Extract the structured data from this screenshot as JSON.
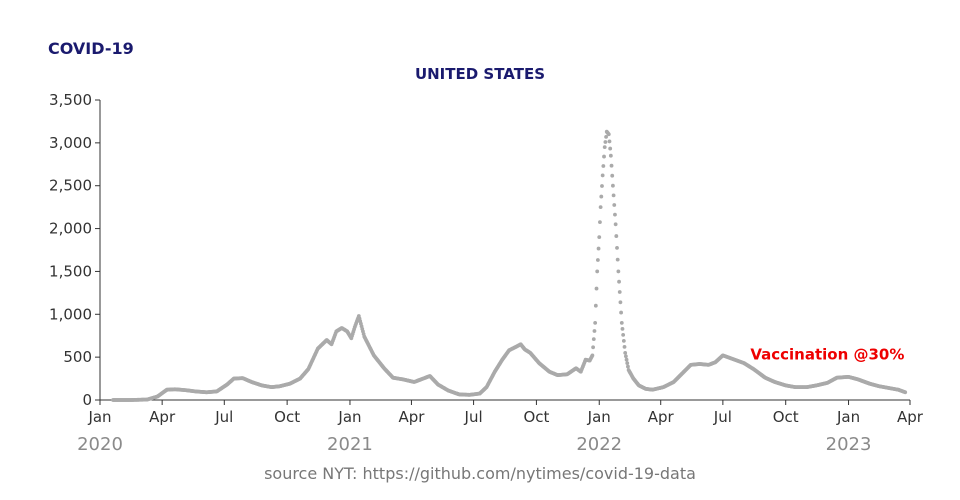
{
  "chart_data": {
    "type": "scatter",
    "title": "COVID-19",
    "subtitle": "UNITED STATES",
    "source": "source NYT: https://github.com/nytimes/covid-19-data",
    "ylim": [
      0,
      3500
    ],
    "y_ticks": [
      0,
      500,
      1000,
      1500,
      2000,
      2500,
      3000,
      3500
    ],
    "y_tick_labels": [
      "0",
      "500",
      "1,000",
      "1,500",
      "2,000",
      "2,500",
      "3,000",
      "3,500"
    ],
    "x_range": [
      "2020-01-01",
      "2023-04-01"
    ],
    "x_ticks": [
      "2020-01-01",
      "2020-04-01",
      "2020-07-01",
      "2020-10-01",
      "2021-01-01",
      "2021-04-01",
      "2021-07-01",
      "2021-10-01",
      "2022-01-01",
      "2022-04-01",
      "2022-07-01",
      "2022-10-01",
      "2023-01-01",
      "2023-04-01"
    ],
    "x_tick_labels": [
      "Jan",
      "Apr",
      "Jul",
      "Oct",
      "Jan",
      "Apr",
      "Jul",
      "Oct",
      "Jan",
      "Apr",
      "Jul",
      "Oct",
      "Jan",
      "Apr"
    ],
    "year_labels": [
      {
        "date": "2020-01-01",
        "label": "2020"
      },
      {
        "date": "2021-01-01",
        "label": "2021"
      },
      {
        "date": "2022-01-01",
        "label": "2022"
      },
      {
        "date": "2023-01-01",
        "label": "2023"
      }
    ],
    "annotation": {
      "text": "Vaccination @30%",
      "date": "2022-12-01",
      "y": 380,
      "color": "#ee0000"
    },
    "marker_color": "#aaaaaa",
    "grid": false,
    "x": [
      "2020-01-20",
      "2020-02-15",
      "2020-03-10",
      "2020-03-25",
      "2020-04-08",
      "2020-04-20",
      "2020-05-05",
      "2020-05-20",
      "2020-06-05",
      "2020-06-20",
      "2020-07-05",
      "2020-07-15",
      "2020-07-28",
      "2020-08-10",
      "2020-08-25",
      "2020-09-08",
      "2020-09-20",
      "2020-10-05",
      "2020-10-20",
      "2020-11-01",
      "2020-11-15",
      "2020-11-28",
      "2020-12-05",
      "2020-12-12",
      "2020-12-20",
      "2020-12-28",
      "2021-01-03",
      "2021-01-08",
      "2021-01-14",
      "2021-01-22",
      "2021-02-05",
      "2021-02-20",
      "2021-03-05",
      "2021-03-20",
      "2021-04-05",
      "2021-04-15",
      "2021-04-28",
      "2021-05-10",
      "2021-05-25",
      "2021-06-10",
      "2021-06-25",
      "2021-07-10",
      "2021-07-20",
      "2021-08-01",
      "2021-08-12",
      "2021-08-22",
      "2021-09-01",
      "2021-09-08",
      "2021-09-14",
      "2021-09-22",
      "2021-10-05",
      "2021-10-20",
      "2021-11-01",
      "2021-11-15",
      "2021-11-28",
      "2021-12-05",
      "2021-12-12",
      "2021-12-18",
      "2021-12-22",
      "2021-12-26",
      "2021-12-29",
      "2022-01-01",
      "2022-01-03",
      "2022-01-06",
      "2022-01-09",
      "2022-01-12",
      "2022-01-15",
      "2022-01-18",
      "2022-01-21",
      "2022-01-25",
      "2022-01-29",
      "2022-02-03",
      "2022-02-08",
      "2022-02-13",
      "2022-02-20",
      "2022-02-28",
      "2022-03-10",
      "2022-03-20",
      "2022-04-05",
      "2022-04-20",
      "2022-05-05",
      "2022-05-15",
      "2022-05-28",
      "2022-06-10",
      "2022-06-20",
      "2022-07-01",
      "2022-07-15",
      "2022-08-01",
      "2022-08-15",
      "2022-09-01",
      "2022-09-15",
      "2022-10-01",
      "2022-10-15",
      "2022-11-01",
      "2022-11-15",
      "2022-12-01",
      "2022-12-15",
      "2023-01-01",
      "2023-01-15",
      "2023-02-01",
      "2023-02-15",
      "2023-03-01",
      "2023-03-15",
      "2023-03-25"
    ],
    "y": [
      0,
      0,
      5,
      40,
      120,
      125,
      115,
      100,
      90,
      100,
      180,
      250,
      255,
      210,
      170,
      150,
      160,
      190,
      250,
      360,
      600,
      700,
      650,
      800,
      840,
      800,
      720,
      850,
      980,
      740,
      520,
      370,
      260,
      240,
      210,
      240,
      280,
      180,
      110,
      65,
      60,
      75,
      150,
      330,
      470,
      580,
      620,
      650,
      590,
      550,
      430,
      330,
      290,
      300,
      370,
      330,
      470,
      460,
      520,
      900,
      1500,
      1900,
      2250,
      2620,
      2950,
      3130,
      3100,
      2850,
      2500,
      2050,
      1500,
      900,
      550,
      350,
      250,
      170,
      130,
      120,
      150,
      210,
      330,
      410,
      420,
      410,
      440,
      520,
      480,
      430,
      360,
      260,
      210,
      170,
      150,
      150,
      170,
      200,
      260,
      270,
      240,
      190,
      160,
      140,
      120,
      90
    ]
  }
}
